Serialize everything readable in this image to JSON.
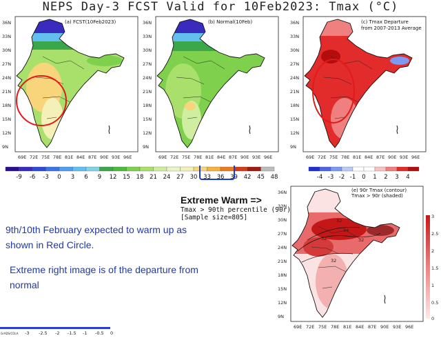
{
  "title": "NEPS Day-3 FCST Valid for 10Feb2023: Tmax (°C)",
  "panels": {
    "a": {
      "label": "(a) FCST(10Feb2023)"
    },
    "b": {
      "label": "(b) Normal(10Feb)"
    },
    "c": {
      "label_line1": "(c) Tmax Departure",
      "label_line2": "from 2007-2013 Average"
    },
    "d": {
      "label_line1": "(e) 90r Tmax (contour)",
      "label_line2": "Tmax > 90r (shaded)"
    }
  },
  "axes": {
    "lat_ticks": [
      "36N",
      "33N",
      "30N",
      "27N",
      "24N",
      "21N",
      "18N",
      "15N",
      "12N",
      "9N"
    ],
    "lon_ticks": [
      "69E",
      "72E",
      "75E",
      "78E",
      "81E",
      "84E",
      "87E",
      "90E",
      "93E",
      "96E"
    ]
  },
  "colorbar_main": {
    "labels": [
      "-9",
      "-6",
      "-3",
      "0",
      "3",
      "6",
      "9",
      "12",
      "15",
      "18",
      "21",
      "24",
      "27",
      "30",
      "33",
      "36",
      "39",
      "42",
      "45",
      "48"
    ],
    "colors": [
      "#2b0d8f",
      "#3a2bbf",
      "#2f49d9",
      "#3c74e8",
      "#4f9ef0",
      "#63bff0",
      "#7fd4e8",
      "#3aa84a",
      "#4cbb3d",
      "#7fd14d",
      "#a8e06b",
      "#cfeea0",
      "#e9f5c8",
      "#f5f0b8",
      "#f8d57a",
      "#f6b33c",
      "#ee7a1e",
      "#d63a16",
      "#9e1b10",
      "#bdbdbd"
    ]
  },
  "colorbar_departure": {
    "labels": [
      "-4",
      "-3",
      "-2",
      "-1",
      "0",
      "1",
      "2",
      "3",
      "4"
    ],
    "colors": [
      "#1f2fd6",
      "#4a66e6",
      "#7d9af0",
      "#b9ccf7",
      "#ffffff",
      "#ffffff",
      "#f8c2c2",
      "#f07f7f",
      "#e22b2b",
      "#b30d0d"
    ]
  },
  "colorbar_90r": {
    "labels": [
      "3",
      "2.5",
      "2",
      "1.5",
      "1",
      "0.5",
      "0"
    ]
  },
  "small_colorbar": {
    "prefix": "GrADS/COLA",
    "labels": [
      "-3",
      "-2.5",
      "-2",
      "-1.5",
      "-1",
      "-0.5",
      "0"
    ]
  },
  "extreme": {
    "title": "Extreme Warm =>",
    "line1": "Tmax > 90th percentile (90r)",
    "line2": "[Sample size=805]"
  },
  "notes": {
    "line1": "9th/10th February expected to warm up as",
    "line2": "shown in Red Circle.",
    "line3": "Extreme right image is of the departure from",
    "line4": "normal"
  },
  "contour_labels": [
    "32",
    "34",
    "32",
    "32",
    "32"
  ]
}
